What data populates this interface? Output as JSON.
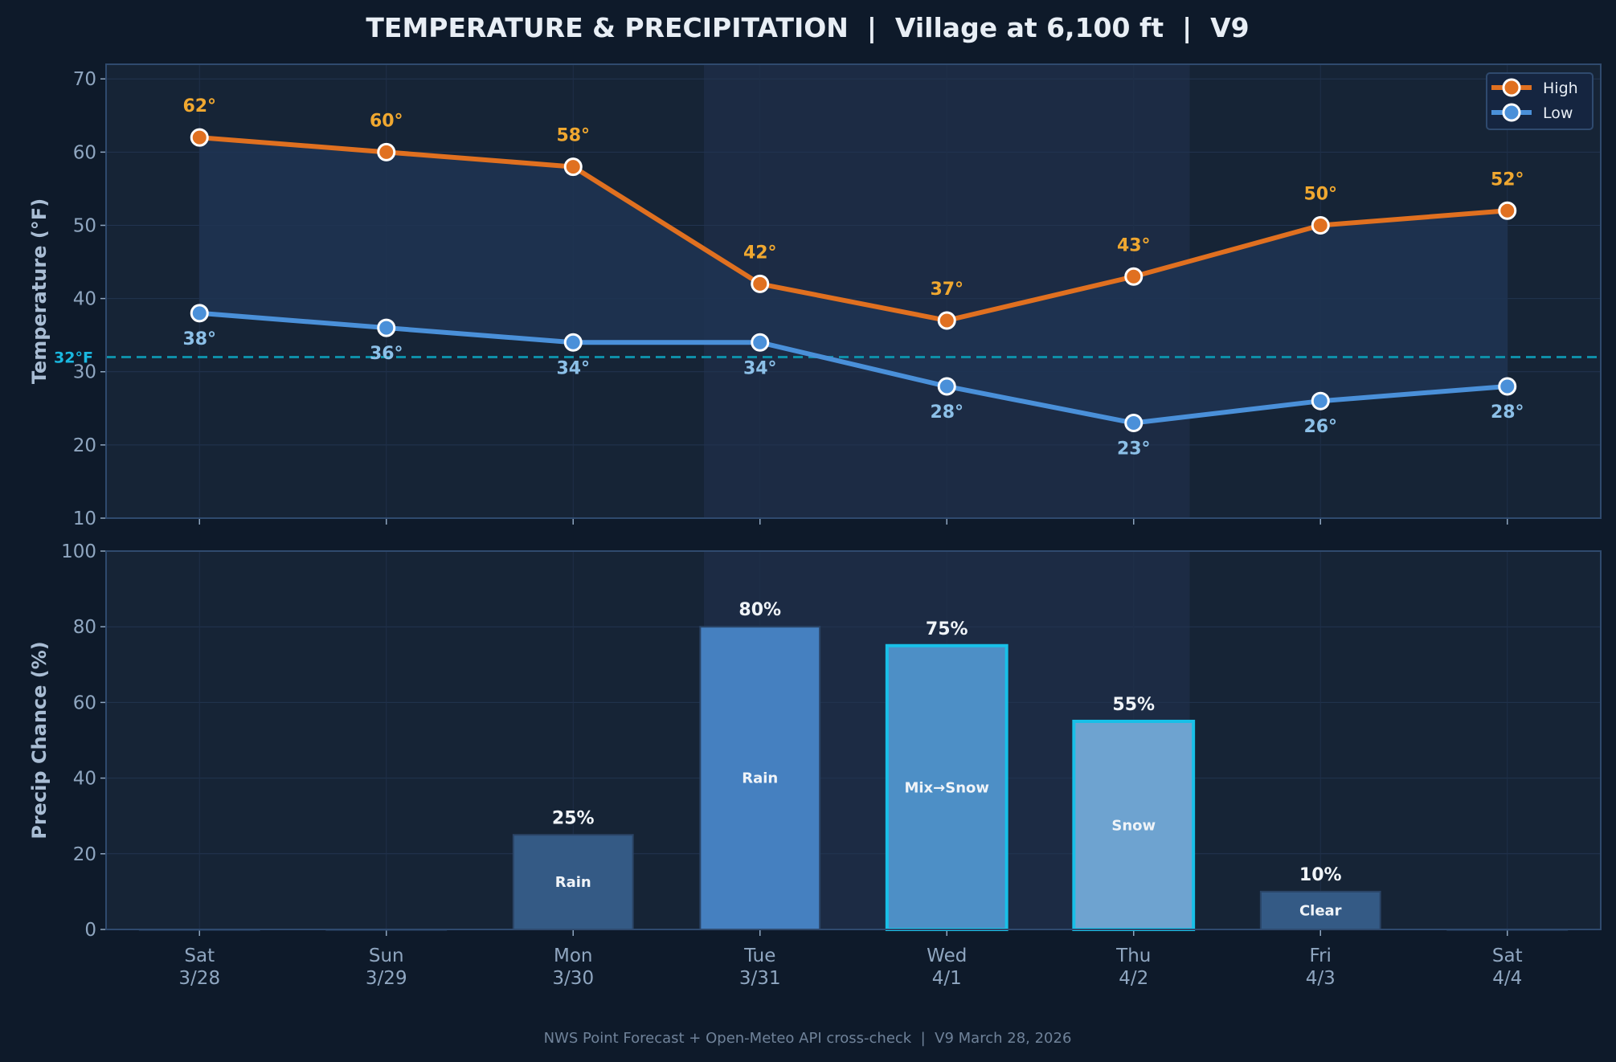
{
  "title": "TEMPERATURE & PRECIPITATION  |  Village at 6,100 ft  |  V9",
  "footer": "NWS Point Forecast + Open-Meteo API cross-check  |  V9 March 28, 2026",
  "colors": {
    "background": "#0e1a2a",
    "plot_bg": "#162436",
    "highlight_span": "#1c2b44",
    "range_fill": "#1f3452",
    "high": "#e07020",
    "high_label": "#f0a830",
    "low": "#4a90d9",
    "low_label": "#8cc0e8",
    "freezing": "#0e8fa8",
    "freezing_label": "#1ab8e0",
    "bar_edge_highlight": "#18c0e8"
  },
  "chart_data": [
    {
      "type": "line",
      "categories": [
        [
          "Sat",
          "3/28"
        ],
        [
          "Sun",
          "3/29"
        ],
        [
          "Mon",
          "3/30"
        ],
        [
          "Tue",
          "3/31"
        ],
        [
          "Wed",
          "4/1"
        ],
        [
          "Thu",
          "4/2"
        ],
        [
          "Fri",
          "4/3"
        ],
        [
          "Sat",
          "4/4"
        ]
      ],
      "ylabel": "Temperature (°F)",
      "ylim": [
        10,
        72
      ],
      "yticks": [
        10,
        20,
        30,
        40,
        50,
        60,
        70
      ],
      "grid": true,
      "legend": "top-right",
      "highlight_span": [
        2.7,
        5.3
      ],
      "reference_line": {
        "value": 32,
        "label": "32°F"
      },
      "series": [
        {
          "name": "High",
          "values": [
            62,
            60,
            58,
            42,
            37,
            43,
            50,
            52
          ],
          "labels": [
            "62°",
            "60°",
            "58°",
            "42°",
            "37°",
            "43°",
            "50°",
            "52°"
          ]
        },
        {
          "name": "Low",
          "values": [
            38,
            36,
            34,
            34,
            28,
            23,
            26,
            28
          ],
          "labels": [
            "38°",
            "36°",
            "34°",
            "34°",
            "28°",
            "23°",
            "26°",
            "28°"
          ]
        }
      ]
    },
    {
      "type": "bar",
      "categories": [
        [
          "Sat",
          "3/28"
        ],
        [
          "Sun",
          "3/29"
        ],
        [
          "Mon",
          "3/30"
        ],
        [
          "Tue",
          "3/31"
        ],
        [
          "Wed",
          "4/1"
        ],
        [
          "Thu",
          "4/2"
        ],
        [
          "Fri",
          "4/3"
        ],
        [
          "Sat",
          "4/4"
        ]
      ],
      "ylabel": "Precip Chance (%)",
      "ylim": [
        0,
        100
      ],
      "yticks": [
        0,
        20,
        40,
        60,
        80,
        100
      ],
      "grid": true,
      "values": [
        0,
        0,
        25,
        80,
        75,
        55,
        10,
        0
      ],
      "value_labels": [
        "",
        "",
        "25%",
        "80%",
        "75%",
        "55%",
        "10%",
        ""
      ],
      "type_labels": [
        "",
        "",
        "Rain",
        "Rain",
        "Mix→Snow",
        "Snow",
        "Clear",
        ""
      ],
      "bar_colors": [
        "#345a85",
        "#345a85",
        "#345a85",
        "#4580c0",
        "#4d8fc6",
        "#6ea3d0",
        "#345a85",
        "#345a85"
      ],
      "highlighted": [
        false,
        false,
        false,
        false,
        true,
        true,
        false,
        false
      ]
    }
  ]
}
